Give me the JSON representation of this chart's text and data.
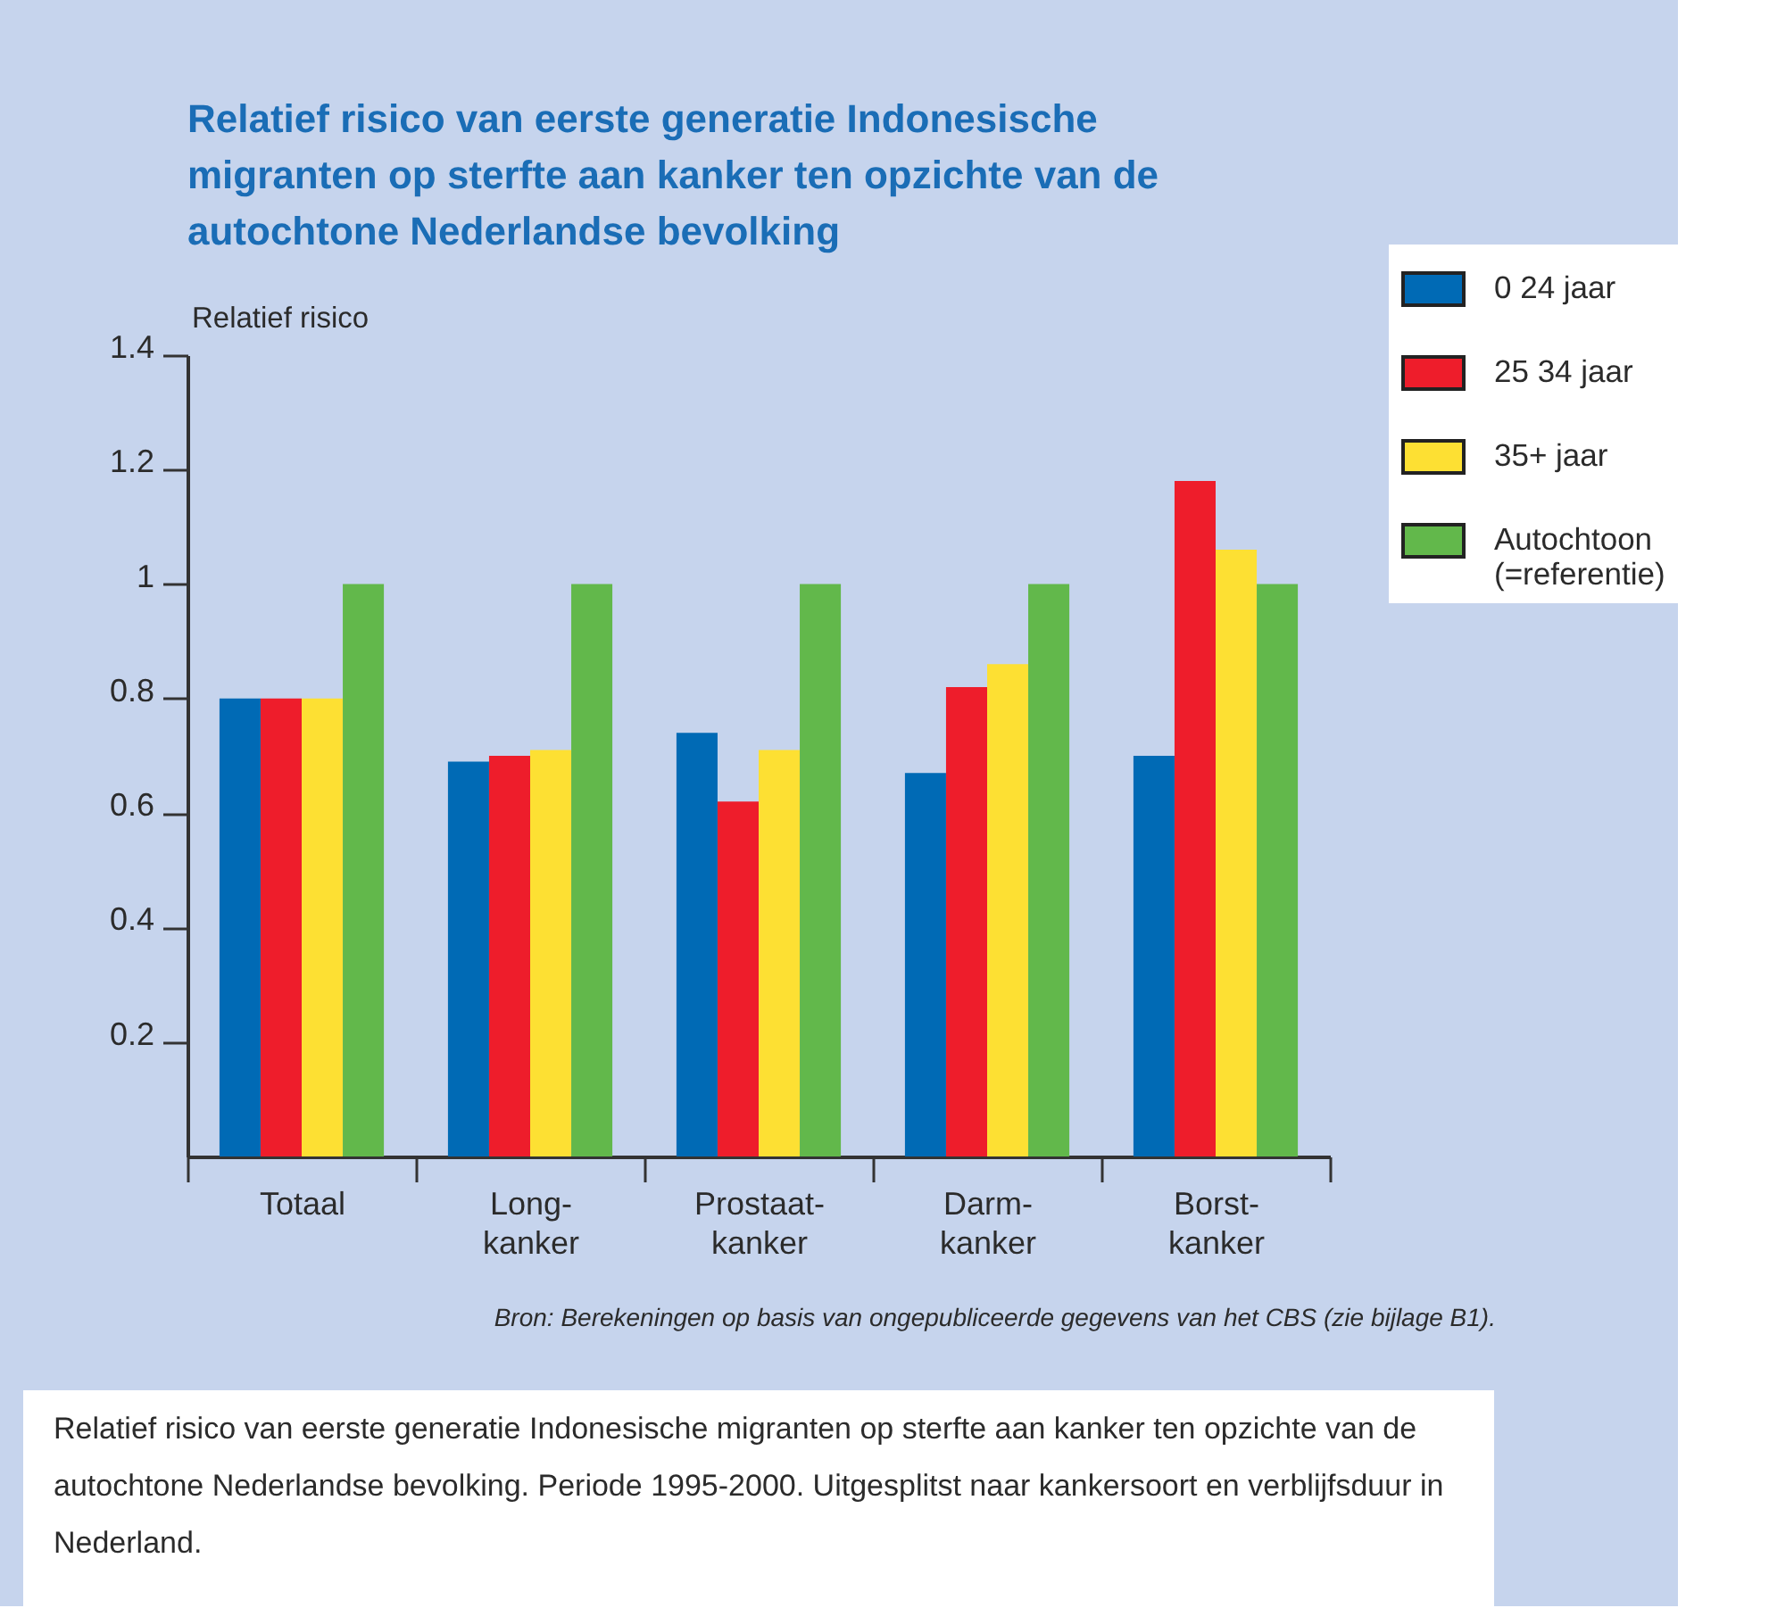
{
  "chart_data": {
    "type": "bar",
    "title": "Relatief risico van eerste generatie Indonesische migranten op sterfte aan kanker ten opzichte van de autochtone Nederlandse bevolking",
    "ylabel": "Relatief risico",
    "categories": [
      "Totaal",
      "Long-kanker",
      "Prostaat-kanker",
      "Darm-kanker",
      "Borst-kanker"
    ],
    "series": [
      {
        "name": "0 24 jaar",
        "color": "#006ab5",
        "values": [
          0.8,
          0.69,
          0.74,
          0.67,
          0.7
        ]
      },
      {
        "name": "25 34 jaar",
        "color": "#ee1d2b",
        "values": [
          0.8,
          0.7,
          0.62,
          0.82,
          1.18
        ]
      },
      {
        "name": "35+ jaar",
        "color": "#fde033",
        "values": [
          0.8,
          0.71,
          0.71,
          0.86,
          1.06
        ]
      },
      {
        "name": "Autochtoon (=referentie)",
        "color": "#62b84b",
        "values": [
          1,
          1,
          1,
          1,
          1
        ]
      }
    ],
    "ylim": [
      0,
      1.4
    ],
    "yticks": [
      0.2,
      0.4,
      0.6,
      0.8,
      1,
      1.2,
      1.4
    ],
    "grid": false,
    "legend": "top right",
    "annotations": [
      "Bron: Berekeningen op basis van ongepubliceerde gegevens van het CBS (zie bijlage B1).",
      "Relatief risico van eerste generatie Indonesische migranten op sterfte aan kanker ten opzichte van de autochtone Nederlandse bevolking. Periode 1995-2000. Uitgesplitst naar kankersoort en verblijfsduur in Nederland."
    ]
  }
}
